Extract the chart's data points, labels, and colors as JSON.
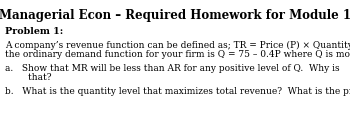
{
  "title": "Managerial Econ – Required Homework for Module 1",
  "background_color": "#ffffff",
  "problem_label": "Problem 1:",
  "body_line1": "A company’s revenue function can be defined as; TR = Price (P) × Quantity Demanded (Q). If",
  "body_line2": "the ordinary demand function for your firm is Q = 75 – 0.4P where Q is monthly output:",
  "item_a_line1": "a.   Show that MR will be less than AR for any positive level of Q.  Why is",
  "item_a_line2": "        that?",
  "item_b": "b.   What is the quantity level that maximizes total revenue?  What is the price?",
  "title_fontsize": 8.5,
  "body_fontsize": 6.5,
  "problem_fontsize": 6.8,
  "figw": 3.5,
  "figh": 1.31,
  "dpi": 100
}
